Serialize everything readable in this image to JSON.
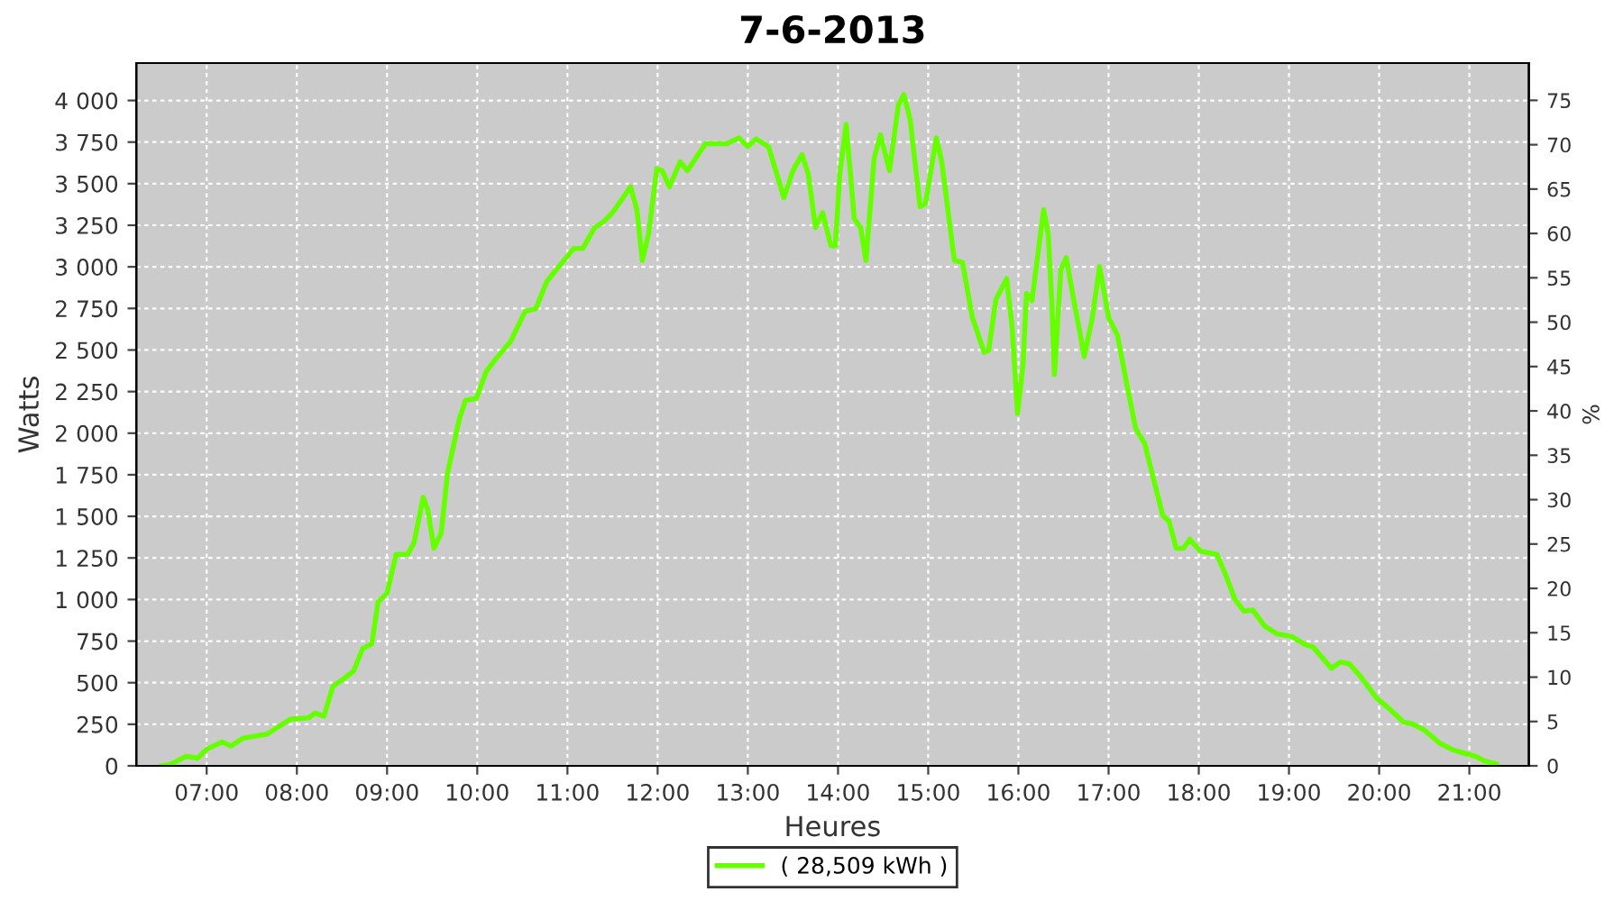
{
  "chart_data": {
    "type": "line",
    "title": "7-6-2013",
    "xlabel": "Heures",
    "ylabel": "Watts",
    "y2label": "%",
    "xlim": [
      6.22,
      21.66
    ],
    "ylim": [
      0,
      4225
    ],
    "y2lim": [
      0,
      79.2
    ],
    "xticks": [
      {
        "value": 7,
        "label": "07:00"
      },
      {
        "value": 8,
        "label": "08:00"
      },
      {
        "value": 9,
        "label": "09:00"
      },
      {
        "value": 10,
        "label": "10:00"
      },
      {
        "value": 11,
        "label": "11:00"
      },
      {
        "value": 12,
        "label": "12:00"
      },
      {
        "value": 13,
        "label": "13:00"
      },
      {
        "value": 14,
        "label": "14:00"
      },
      {
        "value": 15,
        "label": "15:00"
      },
      {
        "value": 16,
        "label": "16:00"
      },
      {
        "value": 17,
        "label": "17:00"
      },
      {
        "value": 18,
        "label": "18:00"
      },
      {
        "value": 19,
        "label": "19:00"
      },
      {
        "value": 20,
        "label": "20:00"
      },
      {
        "value": 21,
        "label": "21:00"
      }
    ],
    "yticks": [
      0,
      250,
      500,
      750,
      {
        "value": 1000,
        "label": "1 000"
      },
      {
        "value": 1250,
        "label": "1 250"
      },
      {
        "value": 1500,
        "label": "1 500"
      },
      {
        "value": 1750,
        "label": "1 750"
      },
      {
        "value": 2000,
        "label": "2 000"
      },
      {
        "value": 2250,
        "label": "2 250"
      },
      {
        "value": 2500,
        "label": "2 500"
      },
      {
        "value": 2750,
        "label": "2 750"
      },
      {
        "value": 3000,
        "label": "3 000"
      },
      {
        "value": 3250,
        "label": "3 250"
      },
      {
        "value": 3500,
        "label": "3 500"
      },
      {
        "value": 3750,
        "label": "3 750"
      },
      {
        "value": 4000,
        "label": "4 000"
      }
    ],
    "y2ticks": [
      0,
      5,
      10,
      15,
      20,
      25,
      30,
      35,
      40,
      45,
      50,
      55,
      60,
      65,
      70,
      75
    ],
    "grid": true,
    "legend": "bottom",
    "line_style": "solid",
    "marker": "none",
    "series": [
      {
        "name": "( 28,509 kWh )",
        "color": "#66ff00",
        "x": [
          6.5,
          6.6,
          6.77,
          6.9,
          7.0,
          7.17,
          7.27,
          7.4,
          7.67,
          7.93,
          8.13,
          8.2,
          8.3,
          8.4,
          8.5,
          8.63,
          8.73,
          8.83,
          8.9,
          9.0,
          9.1,
          9.23,
          9.3,
          9.4,
          9.45,
          9.52,
          9.6,
          9.67,
          9.8,
          9.87,
          9.99,
          10.1,
          10.2,
          10.37,
          10.53,
          10.65,
          10.77,
          10.93,
          11.07,
          11.17,
          11.3,
          11.4,
          11.5,
          11.7,
          11.77,
          11.83,
          11.9,
          11.99,
          12.05,
          12.13,
          12.25,
          12.33,
          12.53,
          12.77,
          12.9,
          13.0,
          13.09,
          13.23,
          13.4,
          13.5,
          13.6,
          13.67,
          13.75,
          13.83,
          13.92,
          13.97,
          14.02,
          14.09,
          14.18,
          14.25,
          14.31,
          14.4,
          14.47,
          14.57,
          14.67,
          14.73,
          14.8,
          14.91,
          14.97,
          15.09,
          15.15,
          15.29,
          15.38,
          15.49,
          15.62,
          15.67,
          15.75,
          15.87,
          15.93,
          15.99,
          16.05,
          16.09,
          16.15,
          16.28,
          16.33,
          16.37,
          16.4,
          16.47,
          16.53,
          16.6,
          16.67,
          16.73,
          16.82,
          16.9,
          17.0,
          17.1,
          17.2,
          17.3,
          17.4,
          17.5,
          17.6,
          17.67,
          17.75,
          17.83,
          17.9,
          18.02,
          18.2,
          18.3,
          18.4,
          18.5,
          18.6,
          18.73,
          18.87,
          19.03,
          19.17,
          19.27,
          19.47,
          19.57,
          19.67,
          19.8,
          19.97,
          20.13,
          20.27,
          20.37,
          20.5,
          20.67,
          20.83,
          20.97,
          21.07,
          21.17,
          21.3
        ],
        "values": [
          0,
          10,
          57,
          46,
          100,
          144,
          119,
          166,
          191,
          281,
          288,
          317,
          299,
          479,
          516,
          570,
          706,
          732,
          984,
          1038,
          1272,
          1272,
          1344,
          1614,
          1543,
          1308,
          1398,
          1759,
          2083,
          2198,
          2209,
          2371,
          2443,
          2551,
          2732,
          2749,
          2911,
          3019,
          3110,
          3110,
          3235,
          3272,
          3326,
          3481,
          3344,
          3038,
          3200,
          3589,
          3578,
          3481,
          3632,
          3578,
          3740,
          3740,
          3776,
          3722,
          3769,
          3722,
          3416,
          3578,
          3675,
          3560,
          3236,
          3326,
          3127,
          3127,
          3560,
          3856,
          3290,
          3236,
          3038,
          3650,
          3794,
          3578,
          3975,
          4036,
          3884,
          3362,
          3380,
          3776,
          3632,
          3038,
          3027,
          2695,
          2486,
          2497,
          2803,
          2929,
          2641,
          2119,
          2407,
          2840,
          2797,
          3344,
          3200,
          2786,
          2353,
          2984,
          3056,
          2840,
          2641,
          2461,
          2695,
          3002,
          2695,
          2587,
          2299,
          2029,
          1938,
          1722,
          1506,
          1470,
          1308,
          1308,
          1362,
          1290,
          1272,
          1146,
          1002,
          930,
          937,
          840,
          793,
          778,
          732,
          713,
          587,
          624,
          613,
          533,
          408,
          335,
          263,
          252,
          216,
          137,
          94,
          72,
          57,
          29,
          11
        ]
      }
    ]
  }
}
